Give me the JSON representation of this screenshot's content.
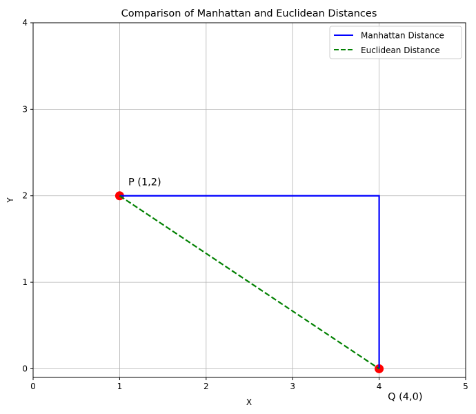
{
  "chart_data": {
    "type": "line",
    "title": "Comparison of Manhattan and Euclidean Distances",
    "xlabel": "X",
    "ylabel": "Y",
    "xlim": [
      0,
      5
    ],
    "ylim": [
      -0.1,
      4
    ],
    "xticks": [
      "0",
      "1",
      "2",
      "3",
      "4",
      "5"
    ],
    "yticks": [
      "0",
      "1",
      "2",
      "3",
      "4"
    ],
    "grid": true,
    "legend_position": "top-right",
    "series": [
      {
        "name": "Manhattan Distance",
        "x": [
          1,
          4,
          4
        ],
        "y": [
          2,
          2,
          0
        ],
        "color": "#0000ff",
        "style": "solid"
      },
      {
        "name": "Euclidean Distance",
        "x": [
          1,
          4
        ],
        "y": [
          2,
          0
        ],
        "color": "#008000",
        "style": "dashed"
      }
    ],
    "points": [
      {
        "x": 1,
        "y": 2,
        "label": "P (1,2)",
        "color": "#ff0000"
      },
      {
        "x": 4,
        "y": 0,
        "label": "Q (4,0)",
        "color": "#ff0000"
      }
    ]
  }
}
